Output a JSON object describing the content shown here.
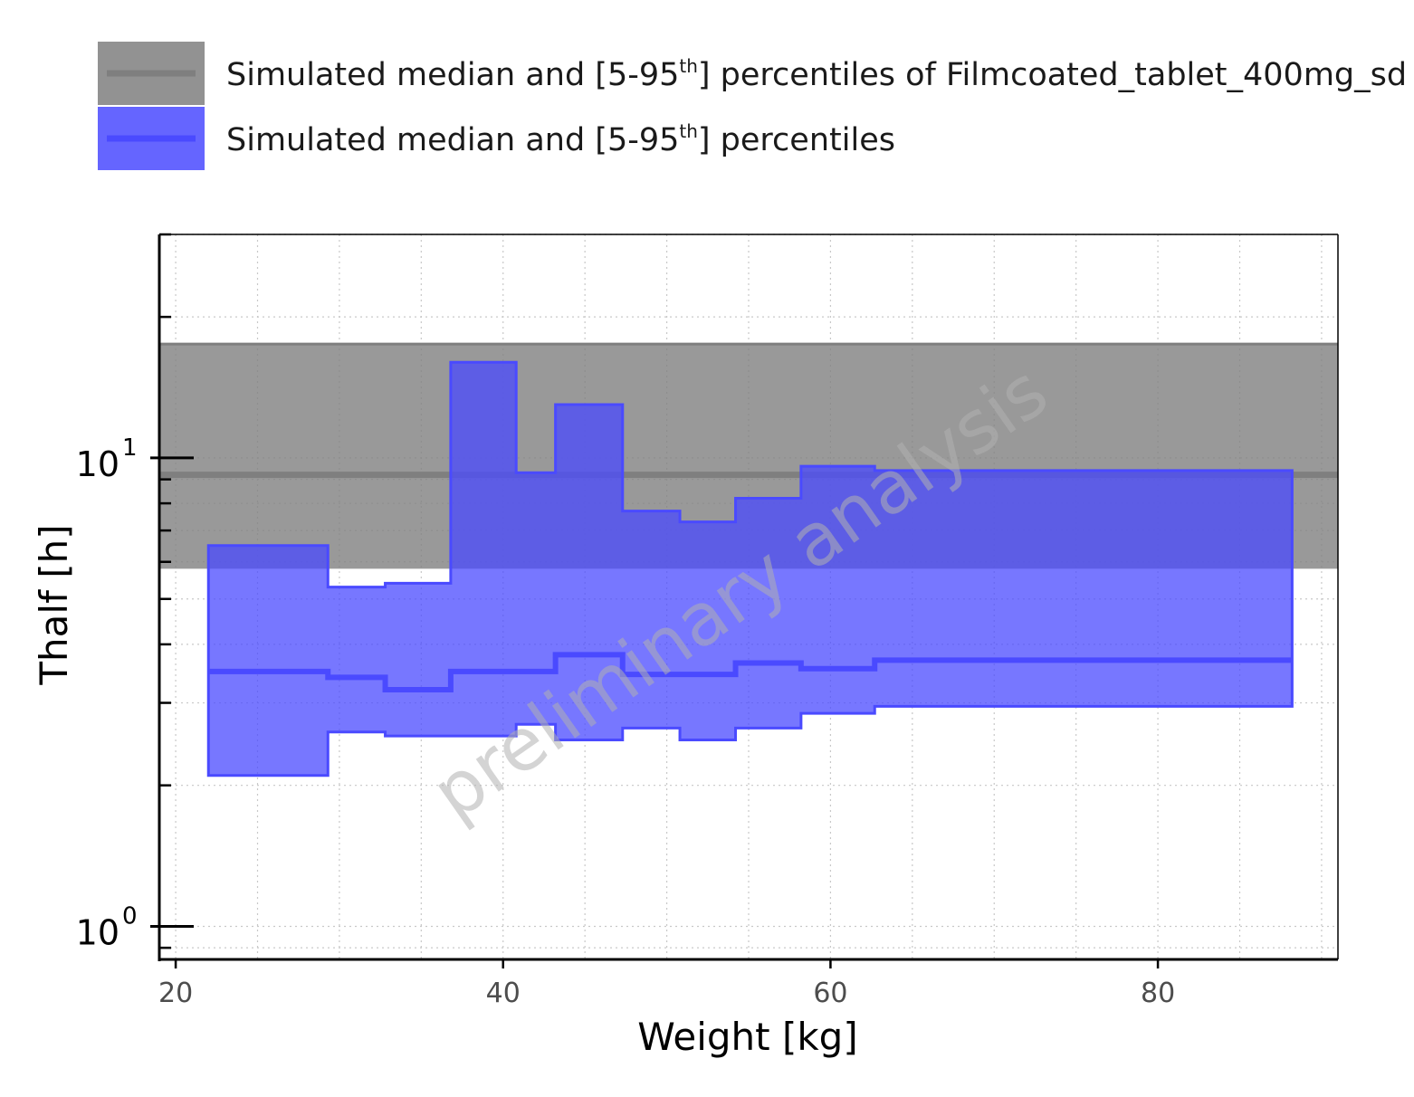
{
  "chart_data": {
    "type": "area",
    "title": "",
    "xlabel": "Weight [kg]",
    "ylabel": "Thalf [h]",
    "x_scale": "linear",
    "y_scale": "log",
    "xlim": [
      19,
      91
    ],
    "ylim": [
      0.85,
      30
    ],
    "grid": true,
    "legend_position": "top-left",
    "watermark": "preliminary analysis",
    "x_ticks": [
      {
        "value": 20,
        "label": "20"
      },
      {
        "value": 40,
        "label": "40"
      },
      {
        "value": 60,
        "label": "60"
      },
      {
        "value": 80,
        "label": "80"
      }
    ],
    "y_ticks": [
      {
        "value": 1,
        "label": "10",
        "exp": "0"
      },
      {
        "value": 10,
        "label": "10",
        "exp": "1"
      }
    ],
    "legend": [
      {
        "label_pre": "Simulated median and [5-95",
        "label_sup": "th",
        "label_post": "] percentiles of Filmcoated_tablet_400mg_sd",
        "color": "#7f7f7f"
      },
      {
        "label_pre": "Simulated median and [5-95",
        "label_sup": "th",
        "label_post": "] percentiles",
        "color": "#4a4aff"
      }
    ],
    "series": [
      {
        "key": "reference",
        "color": "#7f7f7f",
        "fill_opacity": 0.8,
        "x_range": [
          19,
          91
        ],
        "median": 9.2,
        "p5": 5.8,
        "p95": 17.5
      },
      {
        "key": "simulated",
        "color": "#4a4aff",
        "fill_opacity": 0.75,
        "bins": [
          {
            "x0": 22.0,
            "x1": 29.3,
            "p5": 2.1,
            "median": 3.5,
            "p95": 6.5
          },
          {
            "x0": 29.3,
            "x1": 32.8,
            "p5": 2.6,
            "median": 3.4,
            "p95": 5.3
          },
          {
            "x0": 32.8,
            "x1": 36.8,
            "p5": 2.55,
            "median": 3.2,
            "p95": 5.4
          },
          {
            "x0": 36.8,
            "x1": 40.8,
            "p5": 2.55,
            "median": 3.5,
            "p95": 16.0
          },
          {
            "x0": 40.8,
            "x1": 43.2,
            "p5": 2.7,
            "median": 3.5,
            "p95": 9.3
          },
          {
            "x0": 43.2,
            "x1": 47.3,
            "p5": 2.5,
            "median": 3.8,
            "p95": 13.0
          },
          {
            "x0": 47.3,
            "x1": 50.8,
            "p5": 2.65,
            "median": 3.45,
            "p95": 7.7
          },
          {
            "x0": 50.8,
            "x1": 54.2,
            "p5": 2.5,
            "median": 3.45,
            "p95": 7.3
          },
          {
            "x0": 54.2,
            "x1": 58.2,
            "p5": 2.65,
            "median": 3.65,
            "p95": 8.2
          },
          {
            "x0": 58.2,
            "x1": 62.7,
            "p5": 2.85,
            "median": 3.55,
            "p95": 9.6
          },
          {
            "x0": 62.7,
            "x1": 88.2,
            "p5": 2.95,
            "median": 3.7,
            "p95": 9.4
          }
        ]
      }
    ]
  }
}
